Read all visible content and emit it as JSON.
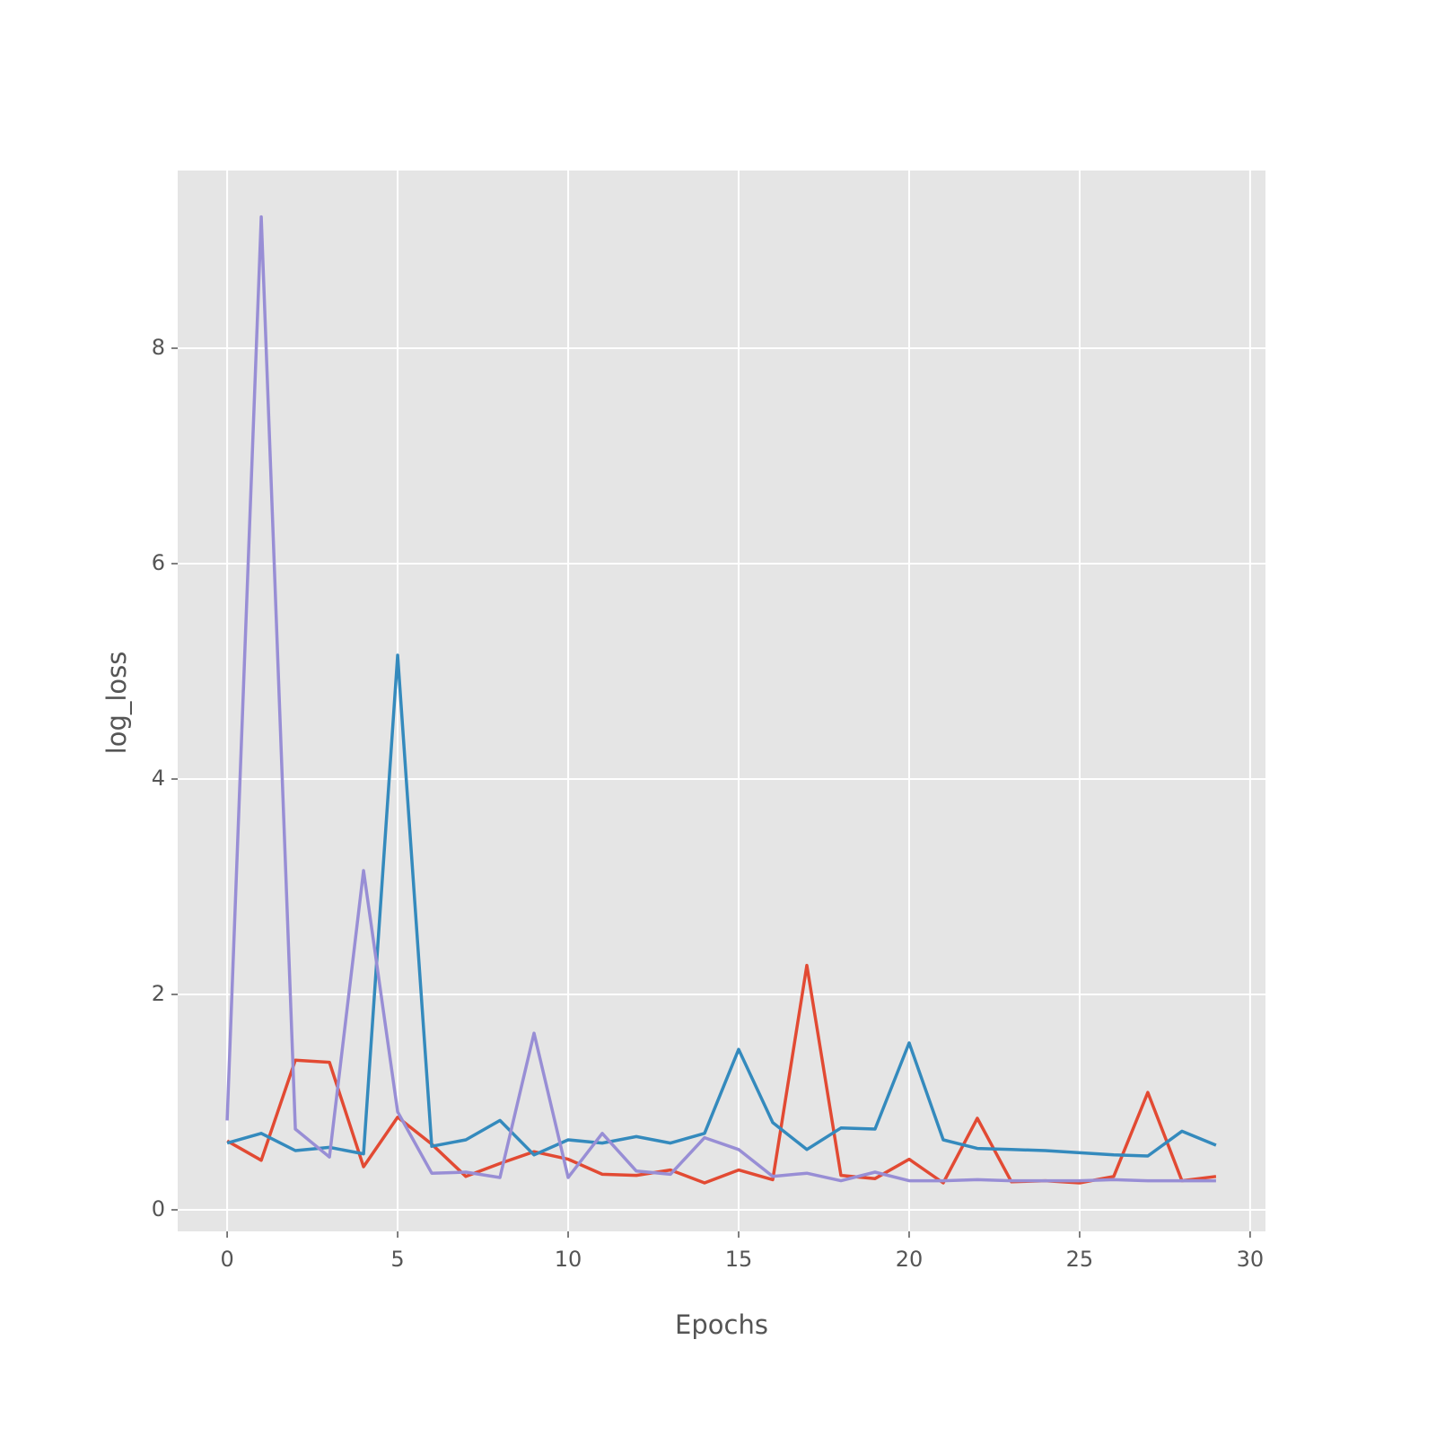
{
  "chart_data": {
    "type": "line",
    "xlabel": "Epochs",
    "ylabel": "log_loss",
    "x": [
      0,
      1,
      2,
      3,
      4,
      5,
      6,
      7,
      8,
      9,
      10,
      11,
      12,
      13,
      14,
      15,
      16,
      17,
      18,
      19,
      20,
      21,
      22,
      23,
      24,
      25,
      26,
      27,
      28,
      29
    ],
    "series": [
      {
        "color": "#E24A33",
        "values": [
          0.64,
          0.46,
          1.39,
          1.37,
          0.4,
          0.86,
          0.61,
          0.31,
          0.43,
          0.54,
          0.47,
          0.33,
          0.32,
          0.37,
          0.25,
          0.37,
          0.28,
          2.27,
          0.32,
          0.29,
          0.47,
          0.25,
          0.85,
          0.26,
          0.27,
          0.25,
          0.31,
          1.09,
          0.27,
          0.31
        ]
      },
      {
        "color": "#348ABD",
        "values": [
          0.62,
          0.71,
          0.55,
          0.58,
          0.52,
          5.15,
          0.59,
          0.65,
          0.83,
          0.51,
          0.65,
          0.62,
          0.68,
          0.62,
          0.71,
          1.49,
          0.81,
          0.56,
          0.76,
          0.75,
          1.55,
          0.65,
          0.57,
          0.56,
          0.55,
          0.53,
          0.51,
          0.5,
          0.73,
          0.6
        ]
      },
      {
        "color": "#988ED5",
        "values": [
          0.83,
          9.22,
          0.75,
          0.49,
          3.15,
          0.91,
          0.34,
          0.35,
          0.3,
          1.64,
          0.3,
          0.71,
          0.36,
          0.33,
          0.67,
          0.56,
          0.31,
          0.34,
          0.27,
          0.35,
          0.27,
          0.27,
          0.28,
          0.27,
          0.27,
          0.27,
          0.28,
          0.27,
          0.27,
          0.27
        ]
      }
    ],
    "xlim": [
      -1.45,
      30.45
    ],
    "ylim": [
      -0.2,
      9.65
    ],
    "xticks": [
      0,
      5,
      10,
      15,
      20,
      25,
      30
    ],
    "yticks": [
      0,
      2,
      4,
      6,
      8
    ],
    "grid": true
  }
}
